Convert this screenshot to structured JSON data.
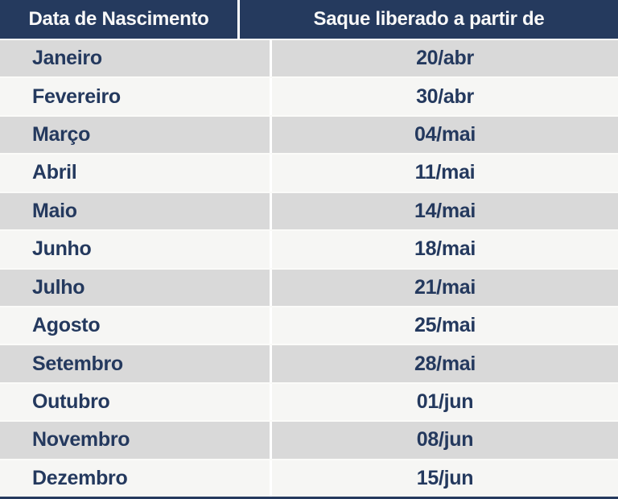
{
  "chart_data": {
    "type": "table",
    "columns": [
      "Data de Nascimento",
      "Saque liberado a partir de"
    ],
    "rows": [
      [
        "Janeiro",
        "20/abr"
      ],
      [
        "Fevereiro",
        "30/abr"
      ],
      [
        "Março",
        "04/mai"
      ],
      [
        "Abril",
        "11/mai"
      ],
      [
        "Maio",
        "14/mai"
      ],
      [
        "Junho",
        "18/mai"
      ],
      [
        "Julho",
        "21/mai"
      ],
      [
        "Agosto",
        "25/mai"
      ],
      [
        "Setembro",
        "28/mai"
      ],
      [
        "Outubro",
        "01/jun"
      ],
      [
        "Novembro",
        "08/jun"
      ],
      [
        "Dezembro",
        "15/jun"
      ]
    ]
  },
  "colors": {
    "header_bg": "#253a5e",
    "header_text": "#f8f8f8",
    "row_gray_bg": "#d9d9d9",
    "row_light_bg": "#f6f6f4",
    "cell_text": "#24395e",
    "column_divider": "#ffffff",
    "row_separator": "#fbfbf9",
    "bottom_border": "#253a5e"
  }
}
